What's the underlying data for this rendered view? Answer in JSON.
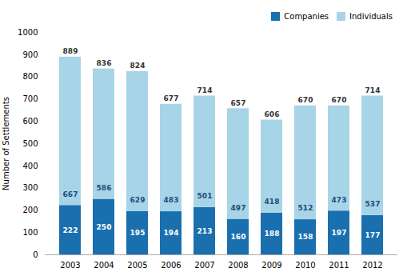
{
  "chart_data": {
    "type": "bar",
    "stacked": true,
    "categories": [
      "2003",
      "2004",
      "2005",
      "2006",
      "2007",
      "2008",
      "2009",
      "2010",
      "2011",
      "2012"
    ],
    "series": [
      {
        "name": "Companies",
        "color": "#1a6faf",
        "values": [
          222,
          250,
          195,
          194,
          213,
          160,
          188,
          158,
          197,
          177
        ]
      },
      {
        "name": "Individuals",
        "color": "#a8d4e8",
        "values": [
          667,
          586,
          629,
          483,
          501,
          497,
          418,
          512,
          473,
          537
        ]
      }
    ],
    "totals": [
      889,
      836,
      824,
      677,
      714,
      657,
      606,
      670,
      670,
      714
    ],
    "ylabel": "Number of Settlements",
    "ylim": [
      0,
      1000
    ],
    "yticks": [
      0,
      100,
      200,
      300,
      400,
      500,
      600,
      700,
      800,
      900,
      1000
    ],
    "grid": false,
    "legend": "upper right",
    "data_labels": true
  }
}
